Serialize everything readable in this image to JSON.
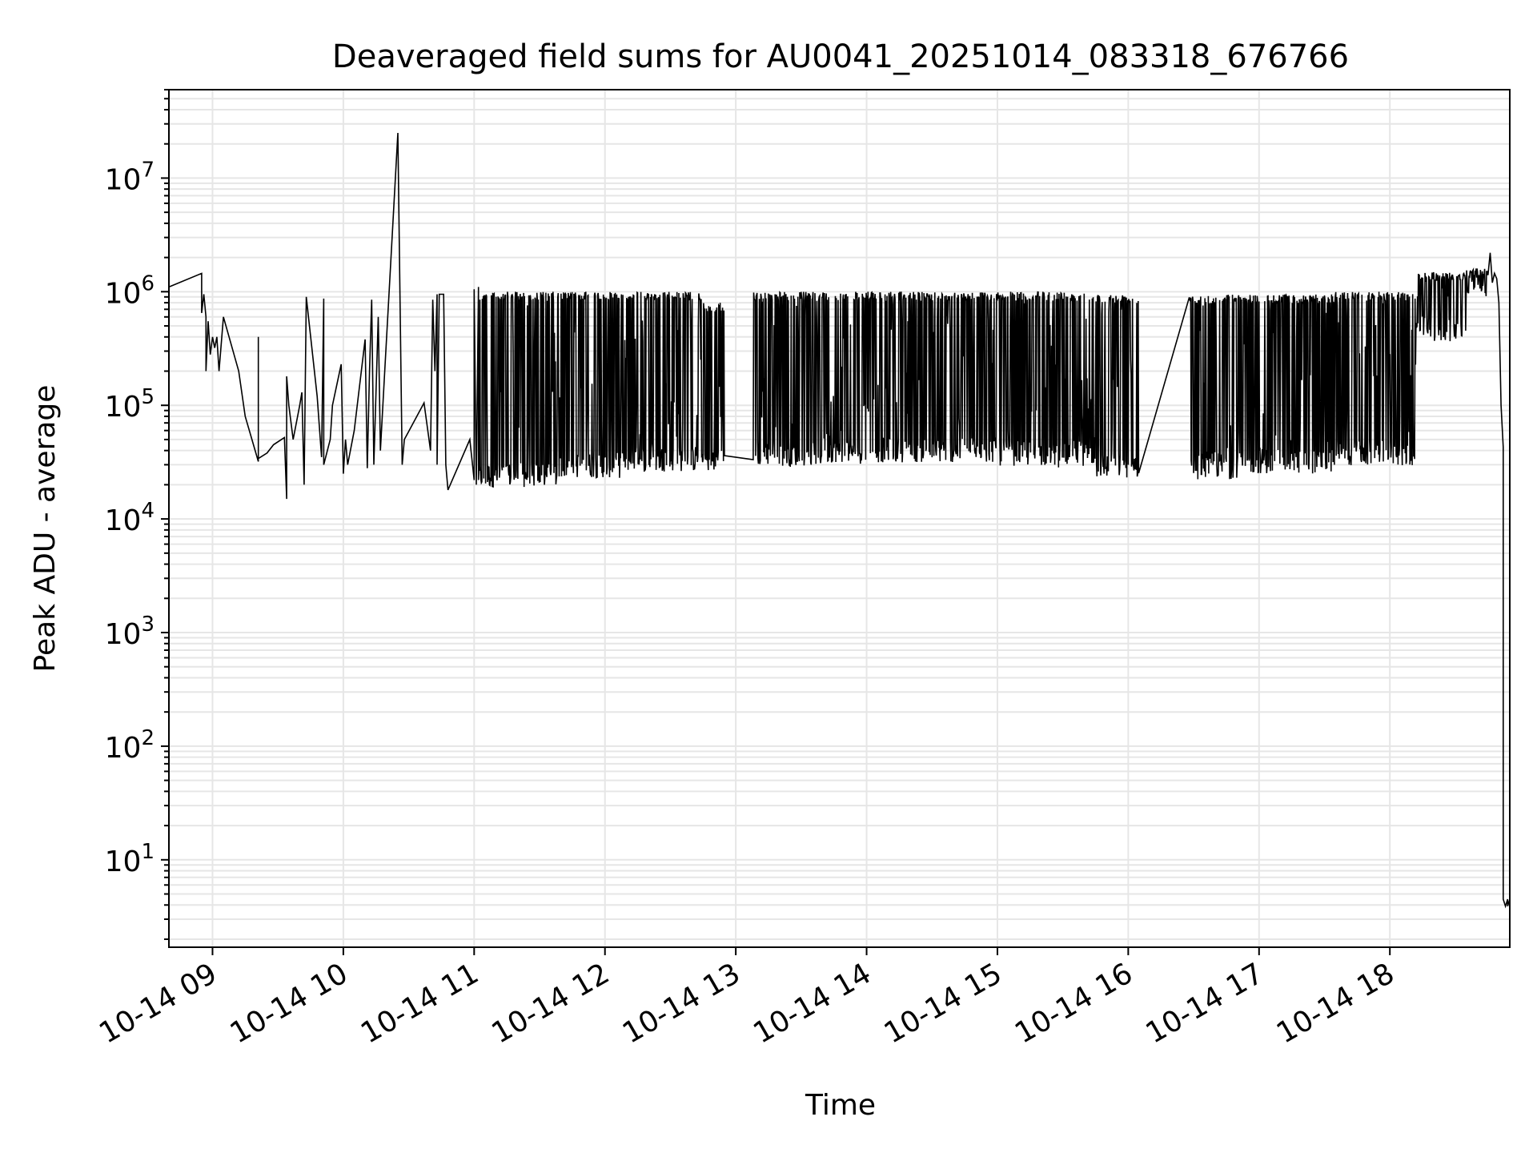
{
  "chart_data": {
    "type": "line",
    "title": "Deaveraged field sums for AU0041_20251014_083318_676766",
    "xlabel": "Time",
    "ylabel": "Peak ADU - average",
    "yscale": "log",
    "ylim": [
      1.7,
      60000000
    ],
    "xlim": [
      "2025-10-14 08:40",
      "2025-10-14 18:55"
    ],
    "xticks": [
      "09:00",
      "10:00",
      "11:00",
      "12:00",
      "13:00",
      "14:00",
      "15:00",
      "16:00",
      "17:00",
      "18:00"
    ],
    "xtick_labels": [
      "10-14 09",
      "10-14 10",
      "10-14 11",
      "10-14 12",
      "10-14 13",
      "10-14 14",
      "10-14 15",
      "10-14 16",
      "10-14 17",
      "10-14 18"
    ],
    "yticks": [
      10,
      100,
      1000,
      10000,
      100000,
      1000000,
      10000000
    ],
    "ytick_labels": [
      {
        "base": "10",
        "exp": "1"
      },
      {
        "base": "10",
        "exp": "2"
      },
      {
        "base": "10",
        "exp": "3"
      },
      {
        "base": "10",
        "exp": "4"
      },
      {
        "base": "10",
        "exp": "5"
      },
      {
        "base": "10",
        "exp": "6"
      },
      {
        "base": "10",
        "exp": "7"
      }
    ],
    "grid": true,
    "line_color": "#000000",
    "grid_color": "#e6e6e6",
    "series": [
      {
        "values": [
          [
            "08:40",
            1100000
          ],
          [
            "08:55",
            1450000
          ],
          [
            "08:55",
            650000
          ],
          [
            "08:56",
            950000
          ],
          [
            "08:57",
            600000
          ],
          [
            "08:57",
            200000
          ],
          [
            "08:58",
            550000
          ],
          [
            "08:59",
            280000
          ],
          [
            "09:00",
            400000
          ],
          [
            "09:01",
            320000
          ],
          [
            "09:02",
            400000
          ],
          [
            "09:03",
            200000
          ],
          [
            "09:05",
            600000
          ],
          [
            "09:12",
            200000
          ],
          [
            "09:15",
            80000
          ],
          [
            "09:21",
            32000
          ],
          [
            "09:21",
            400000
          ],
          [
            "09:21",
            34000
          ],
          [
            "09:25",
            38000
          ],
          [
            "09:28",
            45000
          ],
          [
            "09:33",
            52000
          ],
          [
            "09:34",
            15000
          ],
          [
            "09:34",
            180000
          ],
          [
            "09:35",
            100000
          ],
          [
            "09:37",
            50000
          ],
          [
            "09:40",
            100000
          ],
          [
            "09:41",
            130000
          ],
          [
            "09:42",
            20000
          ],
          [
            "09:43",
            900000
          ],
          [
            "09:48",
            120000
          ],
          [
            "09:50",
            35000
          ],
          [
            "09:51",
            870000
          ],
          [
            "09:51",
            30000
          ],
          [
            "09:54",
            50000
          ],
          [
            "09:55",
            100000
          ],
          [
            "09:59",
            230000
          ],
          [
            "10:00",
            25000
          ],
          [
            "10:01",
            50000
          ],
          [
            "10:02",
            30000
          ],
          [
            "10:05",
            60000
          ],
          [
            "10:10",
            380000
          ],
          [
            "10:11",
            28000
          ],
          [
            "10:12",
            200000
          ],
          [
            "10:13",
            850000
          ],
          [
            "10:14",
            30000
          ],
          [
            "10:16",
            600000
          ],
          [
            "10:17",
            40000
          ],
          [
            "10:19",
            200000
          ],
          [
            "10:21",
            1000000
          ],
          [
            "10:25",
            25000000
          ],
          [
            "10:27",
            30000
          ],
          [
            "10:28",
            50000
          ],
          [
            "10:37",
            105000
          ],
          [
            "10:40",
            40000
          ],
          [
            "10:41",
            850000
          ],
          [
            "10:42",
            200000
          ],
          [
            "10:43",
            950000
          ],
          [
            "10:43",
            30000
          ],
          [
            "10:44",
            950000
          ],
          [
            "10:46",
            950000
          ],
          [
            "10:47",
            30000
          ],
          [
            "10:48",
            18000
          ],
          [
            "10:58",
            50000
          ],
          [
            "11:00",
            22000
          ],
          [
            "11:00",
            1050000
          ],
          [
            "11:01",
            20000
          ],
          [
            "11:02",
            1100000
          ]
        ]
      }
    ],
    "dense_bands": [
      {
        "start": "11:02",
        "end": "11:39",
        "high": 1000000,
        "low": 18000
      },
      {
        "start": "11:39",
        "end": "12:08",
        "high": 1000000,
        "low": 22000
      },
      {
        "start": "12:08",
        "end": "12:45",
        "high": 1000000,
        "low": 25000
      },
      {
        "start": "12:45",
        "end": "12:55",
        "high": 800000,
        "low": 25000
      },
      {
        "start": "13:08",
        "end": "13:40",
        "high": 1000000,
        "low": 28000
      },
      {
        "start": "13:40",
        "end": "14:30",
        "high": 1000000,
        "low": 30000
      },
      {
        "start": "14:30",
        "end": "15:00",
        "high": 1000000,
        "low": 30000
      },
      {
        "start": "15:00",
        "end": "15:45",
        "high": 1000000,
        "low": 28000
      },
      {
        "start": "15:45",
        "end": "16:05",
        "high": 950000,
        "low": 22000
      },
      {
        "start": "16:28",
        "end": "16:55",
        "high": 950000,
        "low": 22000
      },
      {
        "start": "16:55",
        "end": "17:35",
        "high": 950000,
        "low": 24000
      },
      {
        "start": "17:35",
        "end": "18:12",
        "high": 1000000,
        "low": 28000
      },
      {
        "start": "18:12",
        "end": "18:35",
        "high": 1500000,
        "low": 350000
      },
      {
        "start": "18:35",
        "end": "18:45",
        "high": 1600000,
        "low": 900000
      }
    ],
    "tail": [
      [
        "18:45",
        1400000
      ],
      [
        "18:46",
        2200000
      ],
      [
        "18:47",
        1200000
      ],
      [
        "18:48",
        1450000
      ],
      [
        "18:49",
        1300000
      ],
      [
        "18:50",
        800000
      ],
      [
        "18:51",
        100000
      ],
      [
        "18:52",
        43000
      ],
      [
        "18:52",
        33000
      ],
      [
        "18:52",
        4.5
      ],
      [
        "18:53",
        3.9
      ],
      [
        "18:54",
        4.5
      ],
      [
        "18:54",
        3.9
      ],
      [
        "18:55",
        4.5
      ],
      [
        "18:55",
        3.9
      ]
    ]
  }
}
